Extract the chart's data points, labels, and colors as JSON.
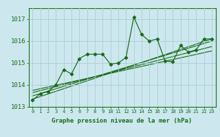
{
  "xlabel": "Graphe pression niveau de la mer (hPa)",
  "bg_color": "#cce8ee",
  "grid_color": "#b0d8e0",
  "line_color": "#1a6b1a",
  "x_values": [
    0,
    1,
    2,
    3,
    4,
    5,
    6,
    7,
    8,
    9,
    10,
    11,
    12,
    13,
    14,
    15,
    16,
    17,
    18,
    19,
    20,
    21,
    22,
    23
  ],
  "y_main": [
    1013.3,
    1013.6,
    1013.7,
    1014.0,
    1014.7,
    1014.5,
    1015.2,
    1015.4,
    1015.4,
    1015.4,
    1014.95,
    1015.0,
    1015.25,
    1017.1,
    1016.3,
    1016.0,
    1016.1,
    1015.1,
    1015.05,
    1015.8,
    1015.5,
    1015.6,
    1016.1,
    1016.1
  ],
  "trend_lines": [
    {
      "x0": 0,
      "y0": 1013.35,
      "x1": 23,
      "y1": 1016.1
    },
    {
      "x0": 0,
      "y0": 1013.5,
      "x1": 23,
      "y1": 1016.0
    },
    {
      "x0": 0,
      "y0": 1013.65,
      "x1": 23,
      "y1": 1015.75
    },
    {
      "x0": 0,
      "y0": 1013.75,
      "x1": 23,
      "y1": 1015.55
    }
  ],
  "ylim": [
    1013.0,
    1017.5
  ],
  "xlim": [
    -0.5,
    23.5
  ],
  "yticks": [
    1013,
    1014,
    1015,
    1016,
    1017
  ],
  "xticks": [
    0,
    1,
    2,
    3,
    4,
    5,
    6,
    7,
    8,
    9,
    10,
    11,
    12,
    13,
    14,
    15,
    16,
    17,
    18,
    19,
    20,
    21,
    22,
    23
  ]
}
